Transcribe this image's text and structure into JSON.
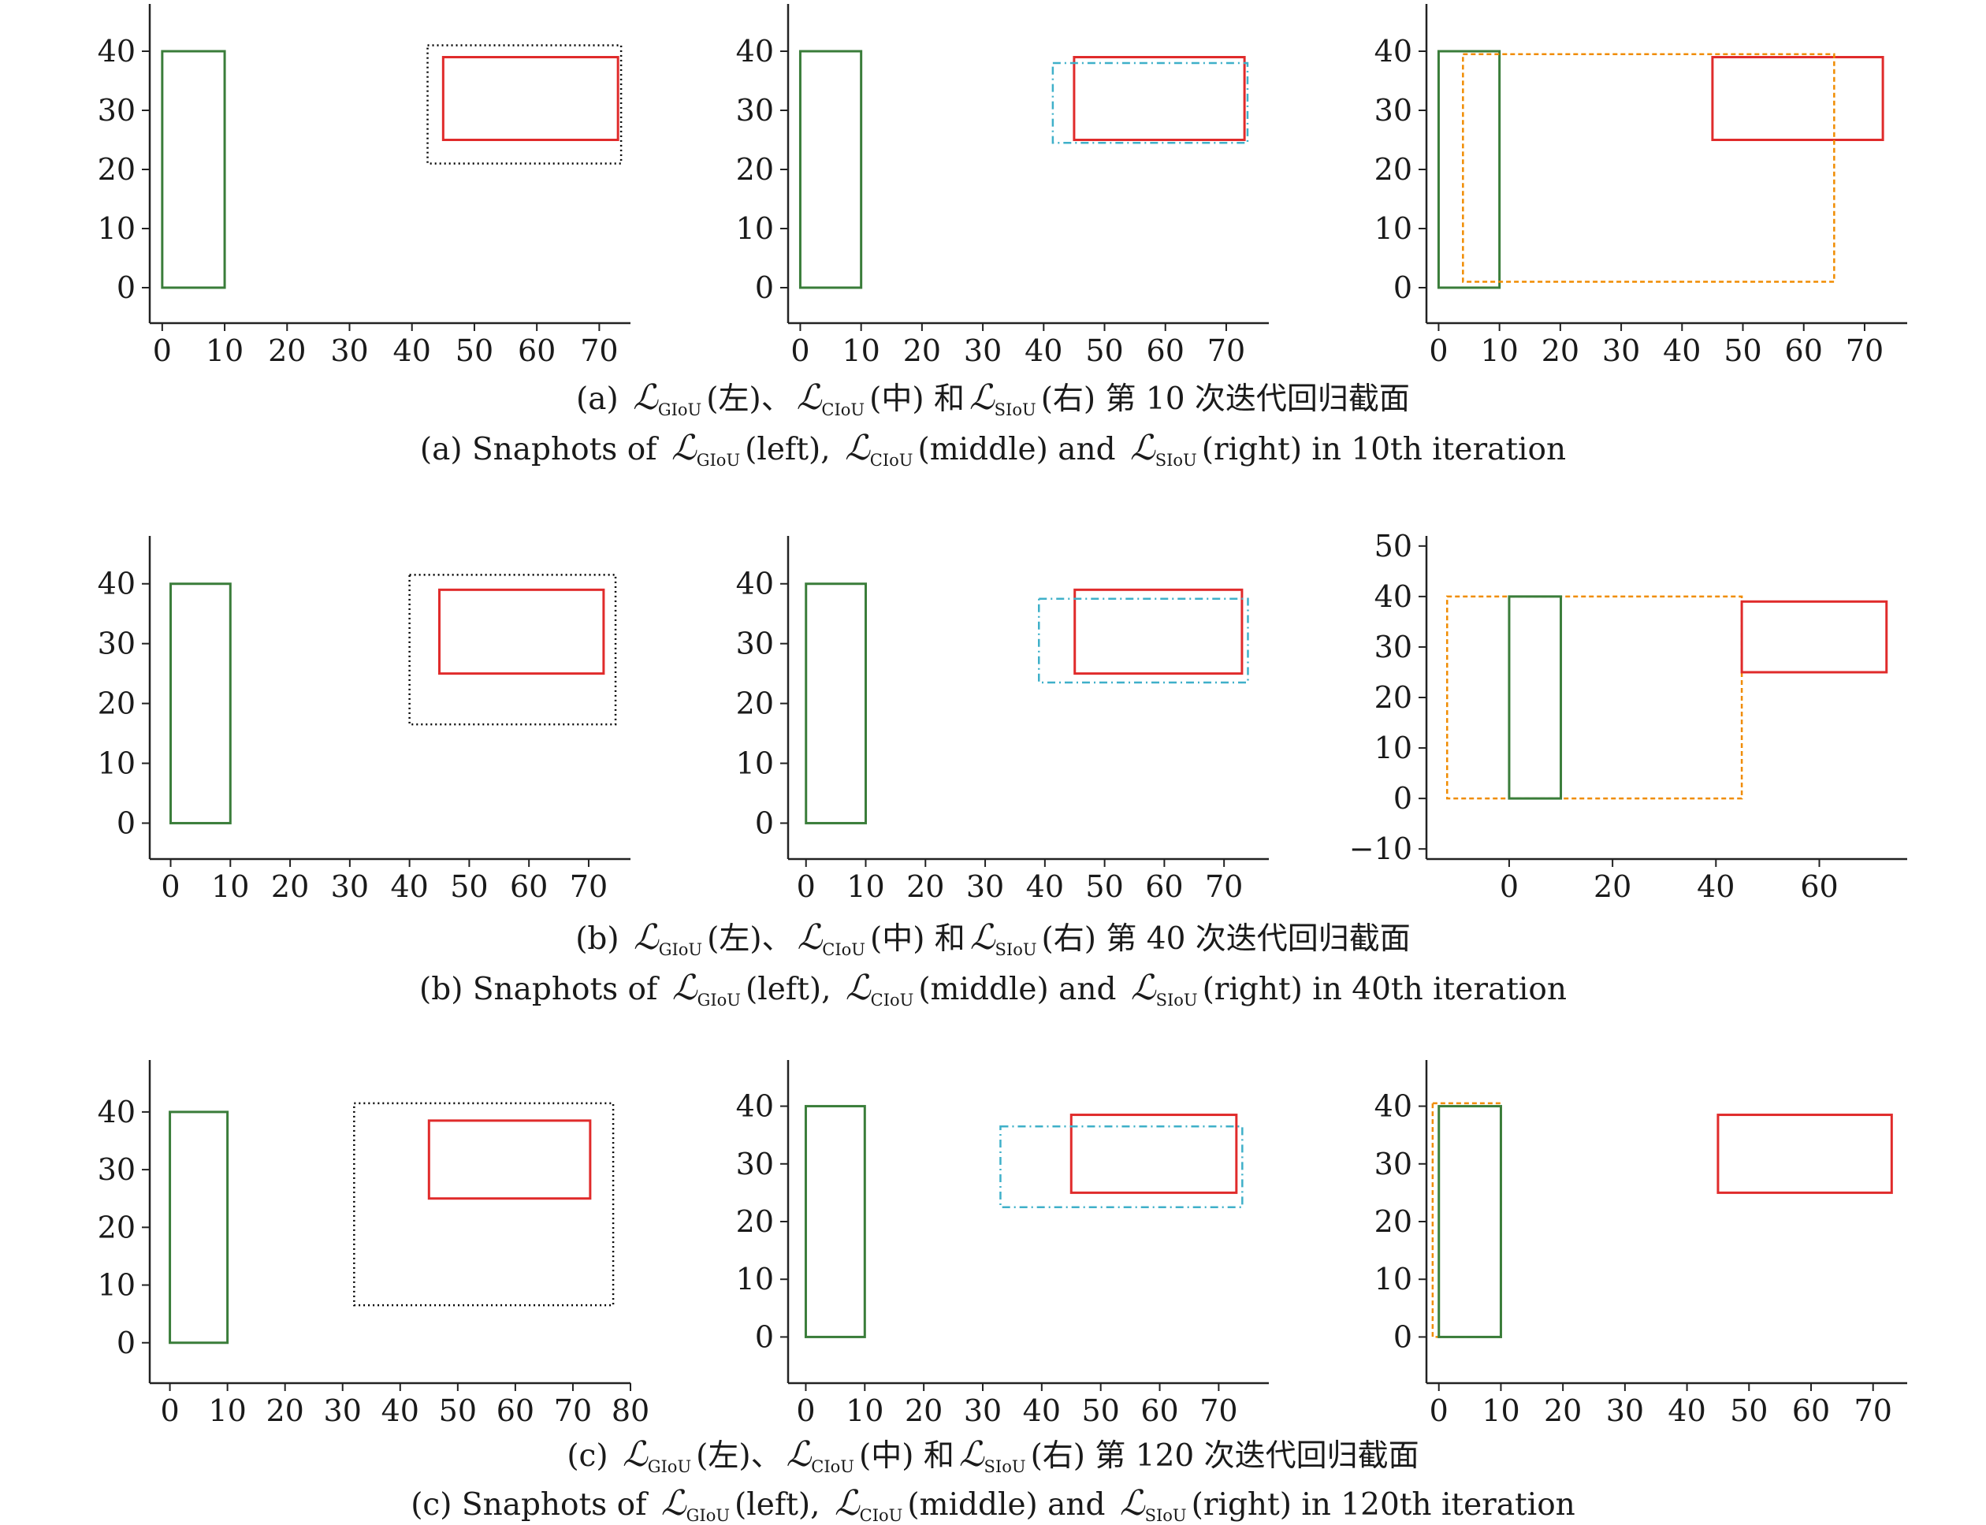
{
  "colors": {
    "ground_truth": "#3a7d3a",
    "prediction": "#e02b2b",
    "giou_enclosing": "#000000",
    "ciou_box": "#3fb0c9",
    "siou_box": "#f08c00"
  },
  "chart_data": [
    {
      "type": "box-plot-snapshot",
      "row": "a",
      "loss": "GIoU",
      "xlim": [
        -2,
        75
      ],
      "ylim": [
        -6,
        48
      ],
      "xticks": [
        0,
        10,
        20,
        30,
        40,
        50,
        60,
        70
      ],
      "yticks": [
        0,
        10,
        20,
        30,
        40
      ],
      "boxes": [
        {
          "role": "ground_truth",
          "x": [
            0,
            10
          ],
          "y": [
            0,
            40
          ]
        },
        {
          "role": "enclosing",
          "x": [
            42.5,
            73.5
          ],
          "y": [
            21,
            41
          ]
        },
        {
          "role": "prediction",
          "x": [
            45,
            73
          ],
          "y": [
            25,
            39
          ]
        }
      ]
    },
    {
      "type": "box-plot-snapshot",
      "row": "a",
      "loss": "CIoU",
      "xlim": [
        -2,
        77
      ],
      "ylim": [
        -6,
        48
      ],
      "xticks": [
        0,
        10,
        20,
        30,
        40,
        50,
        60,
        70
      ],
      "yticks": [
        0,
        10,
        20,
        30,
        40
      ],
      "boxes": [
        {
          "role": "ground_truth",
          "x": [
            0,
            10
          ],
          "y": [
            0,
            40
          ]
        },
        {
          "role": "prediction",
          "x": [
            45,
            73
          ],
          "y": [
            25,
            39
          ]
        },
        {
          "role": "regressed",
          "x": [
            41.5,
            73.5
          ],
          "y": [
            24.5,
            38
          ]
        }
      ]
    },
    {
      "type": "box-plot-snapshot",
      "row": "a",
      "loss": "SIoU",
      "xlim": [
        -2,
        77
      ],
      "ylim": [
        -6,
        48
      ],
      "xticks": [
        0,
        10,
        20,
        30,
        40,
        50,
        60,
        70
      ],
      "yticks": [
        0,
        10,
        20,
        30,
        40
      ],
      "boxes": [
        {
          "role": "ground_truth",
          "x": [
            0,
            10
          ],
          "y": [
            0,
            40
          ]
        },
        {
          "role": "prediction",
          "x": [
            45,
            73
          ],
          "y": [
            25,
            39
          ]
        },
        {
          "role": "regressed",
          "x": [
            4,
            65
          ],
          "y": [
            1,
            39.5
          ]
        }
      ]
    },
    {
      "type": "box-plot-snapshot",
      "row": "b",
      "loss": "GIoU",
      "xlim": [
        -3.5,
        77
      ],
      "ylim": [
        -6,
        48
      ],
      "xticks": [
        0,
        10,
        20,
        30,
        40,
        50,
        60,
        70
      ],
      "yticks": [
        0,
        10,
        20,
        30,
        40
      ],
      "boxes": [
        {
          "role": "ground_truth",
          "x": [
            0,
            10
          ],
          "y": [
            0,
            40
          ]
        },
        {
          "role": "enclosing",
          "x": [
            40,
            74.5
          ],
          "y": [
            16.5,
            41.5
          ]
        },
        {
          "role": "prediction",
          "x": [
            45,
            72.5
          ],
          "y": [
            25,
            39
          ]
        }
      ]
    },
    {
      "type": "box-plot-snapshot",
      "row": "b",
      "loss": "CIoU",
      "xlim": [
        -3,
        77.5
      ],
      "ylim": [
        -6,
        48
      ],
      "xticks": [
        0,
        10,
        20,
        30,
        40,
        50,
        60,
        70
      ],
      "yticks": [
        0,
        10,
        20,
        30,
        40
      ],
      "boxes": [
        {
          "role": "ground_truth",
          "x": [
            0,
            10
          ],
          "y": [
            0,
            40
          ]
        },
        {
          "role": "prediction",
          "x": [
            45,
            73
          ],
          "y": [
            25,
            39
          ]
        },
        {
          "role": "regressed",
          "x": [
            39,
            74
          ],
          "y": [
            23.5,
            37.5
          ]
        }
      ]
    },
    {
      "type": "box-plot-snapshot",
      "row": "b",
      "loss": "SIoU",
      "xlim": [
        -16,
        77
      ],
      "ylim": [
        -12,
        52
      ],
      "xticks": [
        0,
        20,
        40,
        60
      ],
      "yticks": [
        -10,
        0,
        10,
        20,
        30,
        40,
        50
      ],
      "boxes": [
        {
          "role": "regressed",
          "x": [
            -12,
            45
          ],
          "y": [
            0,
            40
          ]
        },
        {
          "role": "ground_truth",
          "x": [
            0,
            10
          ],
          "y": [
            0,
            40
          ]
        },
        {
          "role": "prediction",
          "x": [
            45,
            73
          ],
          "y": [
            25,
            39
          ]
        }
      ]
    },
    {
      "type": "box-plot-snapshot",
      "row": "c",
      "loss": "GIoU",
      "xlim": [
        -3.5,
        80
      ],
      "ylim": [
        -7,
        49
      ],
      "xticks": [
        0,
        10,
        20,
        30,
        40,
        50,
        60,
        70,
        80
      ],
      "yticks": [
        0,
        10,
        20,
        30,
        40
      ],
      "boxes": [
        {
          "role": "ground_truth",
          "x": [
            0,
            10
          ],
          "y": [
            0,
            40
          ]
        },
        {
          "role": "enclosing",
          "x": [
            32,
            77
          ],
          "y": [
            6.5,
            41.5
          ]
        },
        {
          "role": "prediction",
          "x": [
            45,
            73
          ],
          "y": [
            25,
            38.5
          ]
        }
      ]
    },
    {
      "type": "box-plot-snapshot",
      "row": "c",
      "loss": "CIoU",
      "xlim": [
        -3,
        78.5
      ],
      "ylim": [
        -8,
        48
      ],
      "xticks": [
        0,
        10,
        20,
        30,
        40,
        50,
        60,
        70
      ],
      "yticks": [
        0,
        10,
        20,
        30,
        40
      ],
      "boxes": [
        {
          "role": "ground_truth",
          "x": [
            0,
            10
          ],
          "y": [
            0,
            40
          ]
        },
        {
          "role": "prediction",
          "x": [
            45,
            73
          ],
          "y": [
            25,
            38.5
          ]
        },
        {
          "role": "regressed",
          "x": [
            33,
            74
          ],
          "y": [
            22.5,
            36.5
          ]
        }
      ]
    },
    {
      "type": "box-plot-snapshot",
      "row": "c",
      "loss": "SIoU",
      "xlim": [
        -2,
        75.5
      ],
      "ylim": [
        -8,
        48
      ],
      "xticks": [
        0,
        10,
        20,
        30,
        40,
        50,
        60,
        70
      ],
      "yticks": [
        0,
        10,
        20,
        30,
        40
      ],
      "boxes": [
        {
          "role": "regressed",
          "x": [
            -1,
            10
          ],
          "y": [
            0,
            40.5
          ]
        },
        {
          "role": "ground_truth",
          "x": [
            0,
            10
          ],
          "y": [
            0,
            40
          ]
        },
        {
          "role": "prediction",
          "x": [
            45,
            73
          ],
          "y": [
            25,
            38.5
          ]
        }
      ]
    }
  ],
  "captions": {
    "a": {
      "zh_prefix": "(a)",
      "zh_left": "(左)、",
      "zh_mid": "(中) 和",
      "zh_right": "(右) 第 10 次迭代回归截面",
      "en_prefix": "(a) Snaphots of",
      "en_left": "(left),",
      "en_mid": "(middle) and",
      "en_right": "(right) in 10th iteration"
    },
    "b": {
      "zh_prefix": "(b)",
      "zh_left": "(左)、",
      "zh_mid": "(中) 和",
      "zh_right": "(右) 第 40 次迭代回归截面",
      "en_prefix": "(b) Snaphots of",
      "en_left": "(left),",
      "en_mid": "(middle) and",
      "en_right": "(right) in 40th iteration"
    },
    "c": {
      "zh_prefix": "(c)",
      "zh_left": "(左)、",
      "zh_mid": "(中) 和",
      "zh_right": "(右) 第 120 次迭代回归截面",
      "en_prefix": "(c) Snaphots of",
      "en_left": "(left),",
      "en_mid": "(middle) and",
      "en_right": "(right) in 120th iteration"
    },
    "symbols": {
      "script_l": "ℒ",
      "giou": "GIoU",
      "ciou": "CIoU",
      "siou": "SIoU"
    }
  }
}
